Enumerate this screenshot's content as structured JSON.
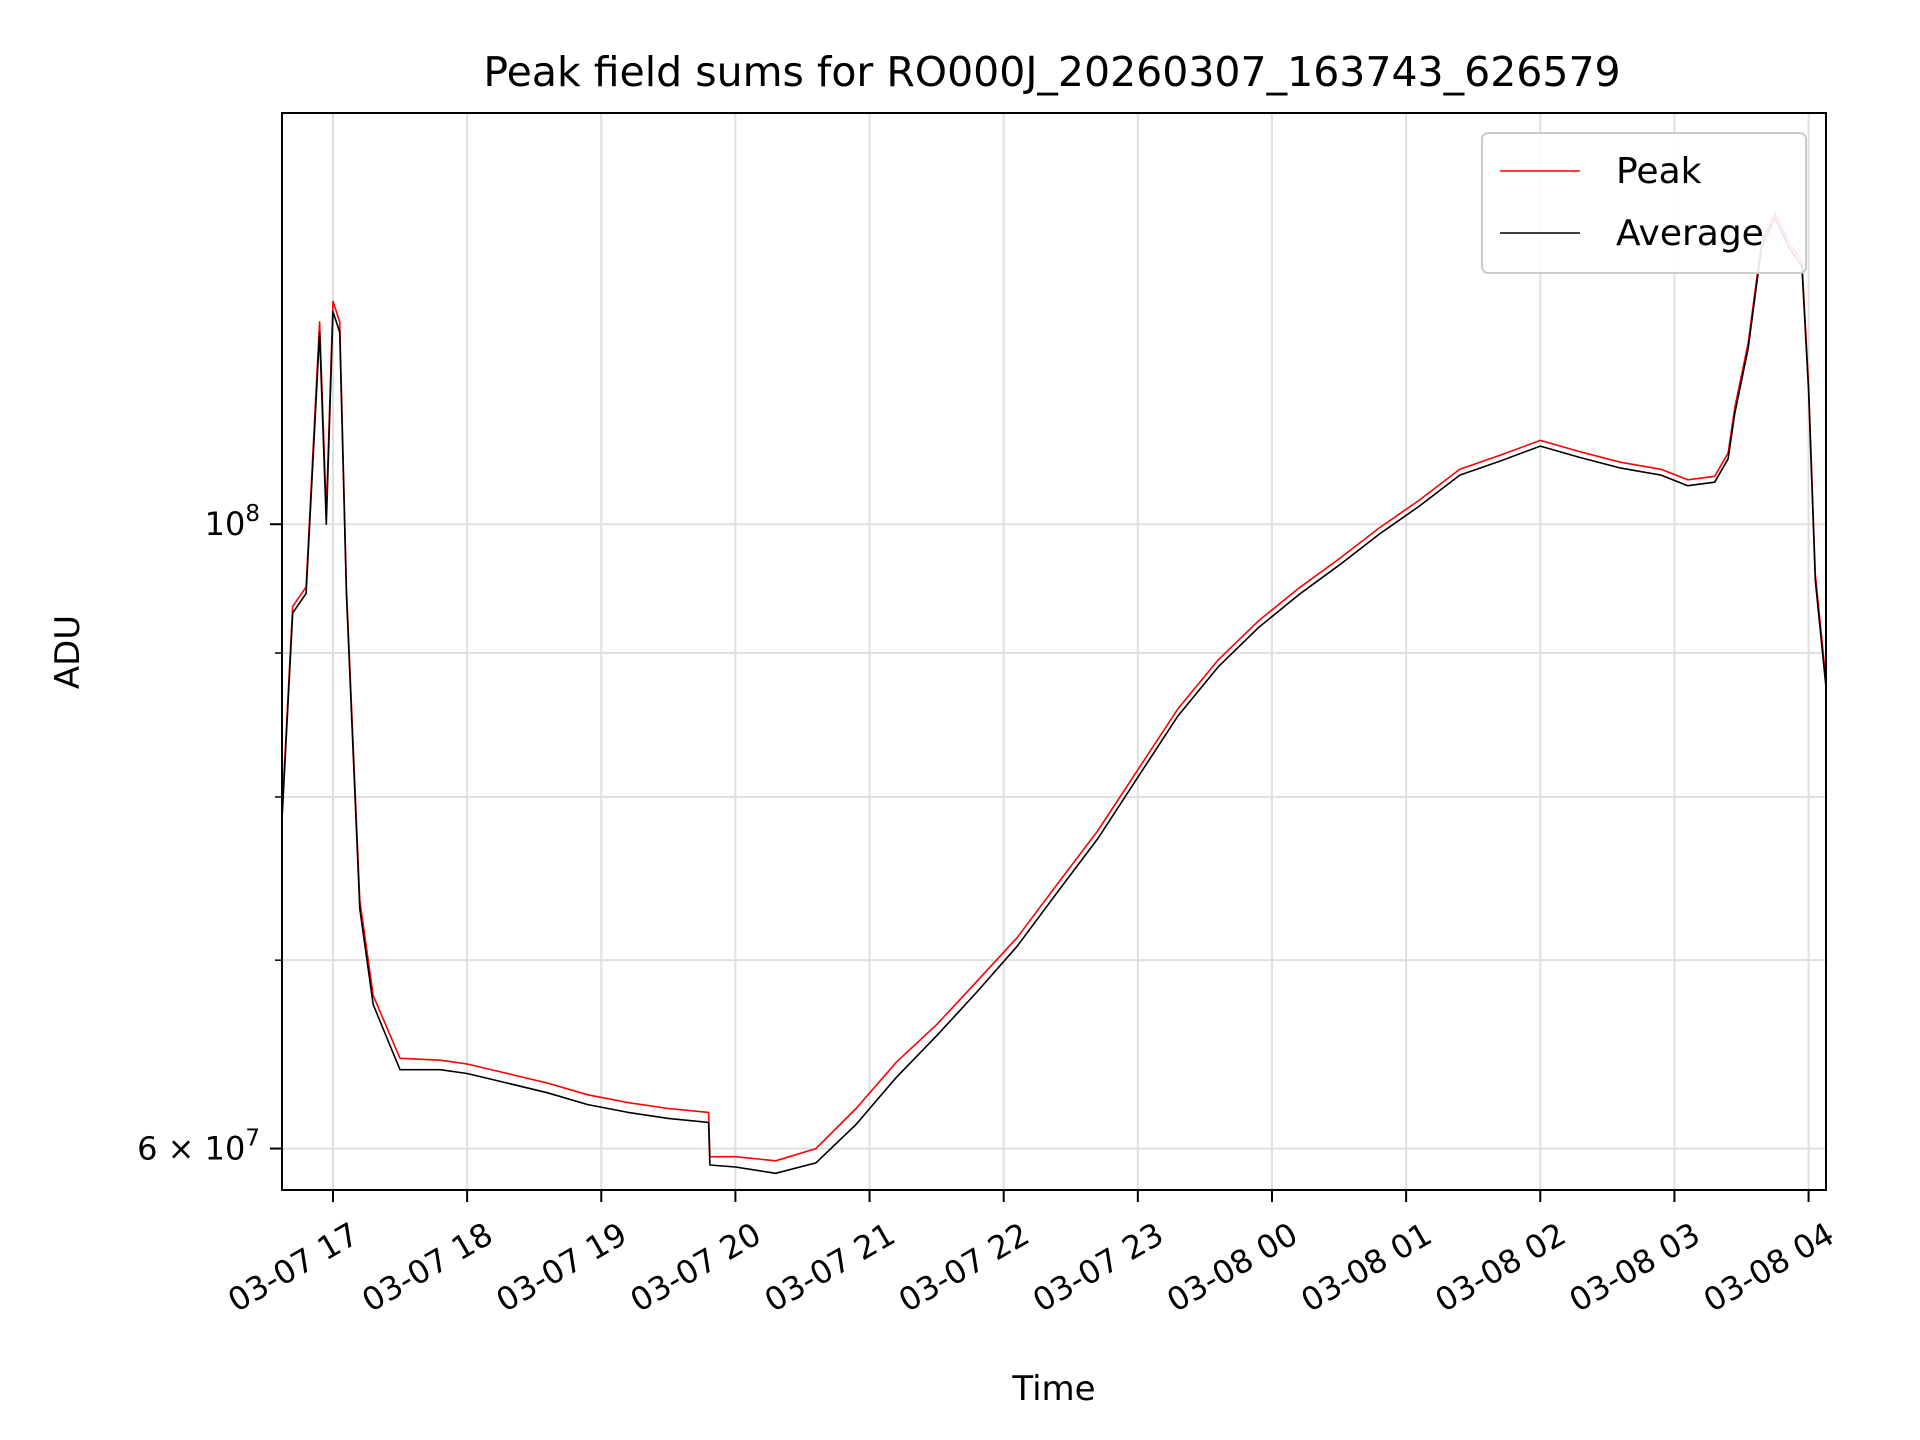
{
  "chart_data": {
    "type": "line",
    "title": "Peak field sums for RO000J_20260307_163743_626579",
    "xlabel": "Time",
    "ylabel": "ADU",
    "yscale": "log",
    "xlim": [
      "03-07 16:37",
      "03-08 04:12"
    ],
    "ylim": [
      58000000,
      140000000
    ],
    "grid": true,
    "legend": "upper right",
    "x_ticks": [
      "03-07 17",
      "03-07 18",
      "03-07 19",
      "03-07 20",
      "03-07 21",
      "03-07 22",
      "03-07 23",
      "03-08 00",
      "03-08 01",
      "03-08 02",
      "03-08 03",
      "03-08 04"
    ],
    "y_ticks": [
      {
        "value": 100000000,
        "base": "10",
        "exp": "8"
      },
      {
        "value": 60000000,
        "base": "6 × 10",
        "exp": "7"
      }
    ],
    "y_minor_ticks": [
      70000000,
      80000000,
      90000000
    ],
    "colors": {
      "peak": "#ff0000",
      "average": "#000000",
      "grid": "#e0e0e0"
    },
    "x_hours": [
      16.62,
      16.7,
      16.8,
      16.9,
      16.95,
      17.0,
      17.05,
      17.1,
      17.2,
      17.3,
      17.5,
      17.8,
      18.0,
      18.3,
      18.6,
      18.9,
      19.2,
      19.5,
      19.8,
      19.81,
      20.0,
      20.3,
      20.6,
      20.9,
      21.2,
      21.5,
      21.8,
      22.1,
      22.4,
      22.7,
      23.0,
      23.3,
      23.6,
      23.9,
      24.2,
      24.5,
      24.8,
      25.1,
      25.4,
      25.7,
      26.0,
      26.3,
      26.6,
      26.9,
      27.1,
      27.3,
      27.4,
      27.45,
      27.55,
      27.65,
      27.75,
      27.85,
      27.95,
      28.0,
      28.05,
      28.13
    ],
    "series": [
      {
        "name": "Peak",
        "color": "#ff0000",
        "values": [
          79000000,
          93500000,
          95000000,
          118000000,
          101000000,
          120000000,
          118000000,
          95000000,
          73500000,
          68000000,
          64600000,
          64500000,
          64300000,
          63800000,
          63300000,
          62700000,
          62300000,
          62000000,
          61800000,
          59600000,
          59600000,
          59400000,
          60000000,
          62000000,
          64400000,
          66400000,
          68800000,
          71300000,
          74500000,
          77800000,
          81800000,
          86000000,
          89500000,
          92400000,
          94900000,
          97200000,
          99700000,
          102000000,
          104600000,
          105800000,
          107100000,
          106100000,
          105200000,
          104600000,
          103700000,
          104000000,
          106000000,
          110000000,
          116000000,
          126000000,
          129000000,
          126000000,
          124000000,
          112000000,
          96000000,
          88000000
        ]
      },
      {
        "name": "Average",
        "color": "#000000",
        "values": [
          78500000,
          93000000,
          94500000,
          117000000,
          100000000,
          119000000,
          117000000,
          94500000,
          73000000,
          67500000,
          64000000,
          64000000,
          63800000,
          63300000,
          62800000,
          62200000,
          61800000,
          61500000,
          61300000,
          59200000,
          59100000,
          58800000,
          59300000,
          61200000,
          63600000,
          65800000,
          68200000,
          70800000,
          74000000,
          77300000,
          81300000,
          85500000,
          89000000,
          91900000,
          94400000,
          96700000,
          99200000,
          101500000,
          104100000,
          105300000,
          106600000,
          105600000,
          104700000,
          104100000,
          103200000,
          103500000,
          105500000,
          109500000,
          115500000,
          125500000,
          128500000,
          125500000,
          123500000,
          111500000,
          95500000,
          87500000
        ]
      }
    ]
  }
}
